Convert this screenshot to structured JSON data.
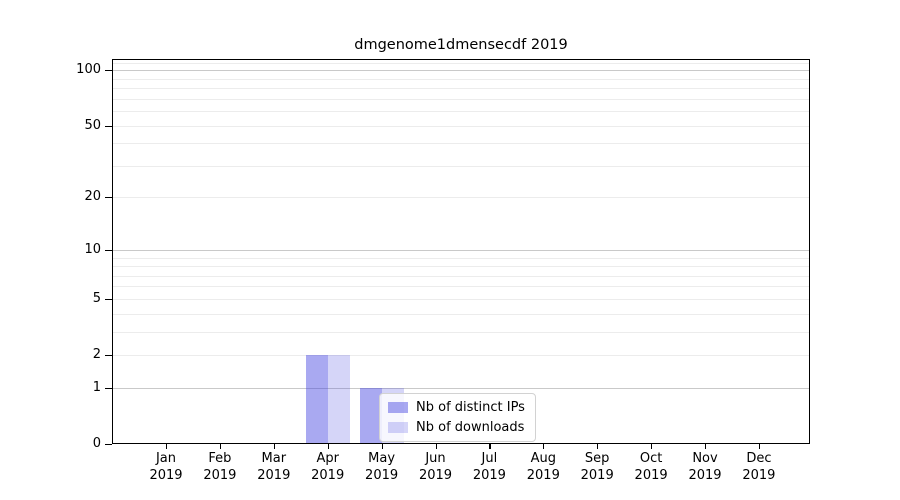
{
  "chart_data": {
    "type": "bar",
    "title": "dmgenome1dmensecdf 2019",
    "categories": [
      "Jan",
      "Feb",
      "Mar",
      "Apr",
      "May",
      "Jun",
      "Jul",
      "Aug",
      "Sep",
      "Oct",
      "Nov",
      "Dec"
    ],
    "x_year_label": "2019",
    "series": [
      {
        "name": "Nb of distinct IPs",
        "color": "rgba(64,64,224,0.45)",
        "color_on_white": "#a8a8f0",
        "values": [
          0,
          0,
          0,
          2,
          1,
          0,
          0,
          0,
          0,
          0,
          0,
          0
        ]
      },
      {
        "name": "Nb of downloads",
        "color": "rgba(64,64,224,0.22)",
        "color_on_white": "#d8d8f8",
        "values": [
          0,
          0,
          0,
          2,
          1,
          0,
          0,
          0,
          0,
          0,
          0,
          0
        ]
      }
    ],
    "xlabel": "",
    "ylabel": "",
    "yscale": "symlog (y position proportional to ln(1+value))",
    "ylim": [
      0,
      115
    ],
    "ytick_values": [
      0,
      1,
      2,
      5,
      10,
      20,
      50,
      100
    ],
    "y_major_gridlines": [
      1,
      10,
      100
    ],
    "y_minor_gridlines": [
      2,
      3,
      4,
      5,
      6,
      7,
      8,
      9,
      20,
      30,
      40,
      50,
      60,
      70,
      80,
      90,
      110
    ],
    "grid": true,
    "grid_major_color": "#c9c9c9",
    "grid_minor_color": "#ececec",
    "legend_position": "inside plot, lower center-right",
    "legend_entries": [
      "Nb of distinct IPs",
      "Nb of downloads"
    ]
  }
}
